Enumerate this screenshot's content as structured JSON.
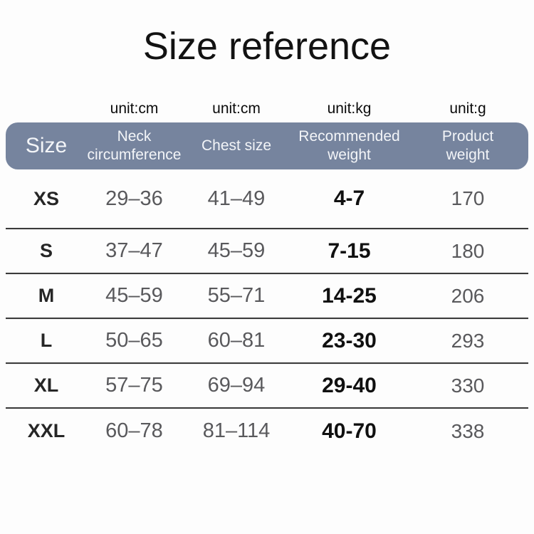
{
  "title": "Size reference",
  "units": {
    "neck": "unit:cm",
    "chest": "unit:cm",
    "weight": "unit:kg",
    "product": "unit:g"
  },
  "table": {
    "headers": {
      "size": "Size",
      "neck": "Neck\ncircumference",
      "chest": "Chest size",
      "weight": "Recommended\nweight",
      "product": "Product\nweight"
    },
    "rows": [
      [
        "XS",
        "29–36",
        "41–49",
        "4-7",
        "170"
      ],
      [
        "S",
        "37–47",
        "45–59",
        "7-15",
        "180"
      ],
      [
        "M",
        "45–59",
        "55–71",
        "14-25",
        "206"
      ],
      [
        "L",
        "50–65",
        "60–81",
        "23-30",
        "293"
      ],
      [
        "XL",
        "57–75",
        "69–94",
        "29-40",
        "330"
      ],
      [
        "XXL",
        "60–78",
        "81–114",
        "40-70",
        "338"
      ]
    ]
  },
  "colors": {
    "header_bg": "#76849e",
    "header_text": "#f3f5f8",
    "divider": "#3a3a3a",
    "value_gray": "#59595c",
    "value_black": "#101010"
  }
}
